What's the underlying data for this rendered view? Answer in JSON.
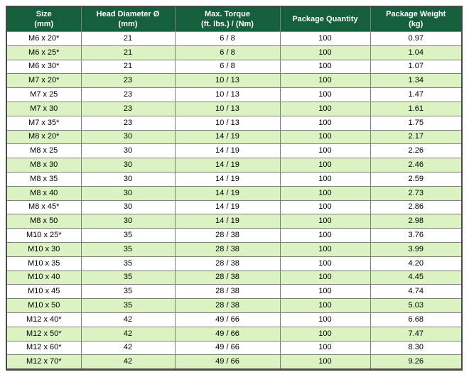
{
  "colors": {
    "header_bg": "#155F3D",
    "header_text": "#FFFFFF",
    "row_bg": "#FFFFFF",
    "row_alt_bg": "#DBF3C3",
    "grid_border": "#7F7F7F",
    "outer_border": "#4A4A4A",
    "text": "#000000"
  },
  "table": {
    "headers": [
      {
        "id": "size",
        "label": "Size\n(mm)"
      },
      {
        "id": "head-diameter",
        "label": "Head Diameter Ø\n(mm)"
      },
      {
        "id": "max-torque",
        "label": "Max. Torque\n(ft. lbs.) / (Nm)"
      },
      {
        "id": "package-quantity",
        "label": "Package Quantity"
      },
      {
        "id": "package-weight",
        "label": "Package Weight\n(kg)"
      }
    ],
    "rows": [
      [
        "M6 x 20*",
        "21",
        "6 / 8",
        "100",
        "0.97"
      ],
      [
        "M6 x 25*",
        "21",
        "6 / 8",
        "100",
        "1.04"
      ],
      [
        "M6 x 30*",
        "21",
        "6 / 8",
        "100",
        "1.07"
      ],
      [
        "M7 x 20*",
        "23",
        "10 / 13",
        "100",
        "1.34"
      ],
      [
        "M7 x 25",
        "23",
        "10 / 13",
        "100",
        "1.47"
      ],
      [
        "M7 x 30",
        "23",
        "10 / 13",
        "100",
        "1.61"
      ],
      [
        "M7 x 35*",
        "23",
        "10 / 13",
        "100",
        "1.75"
      ],
      [
        "M8 x 20*",
        "30",
        "14 / 19",
        "100",
        "2.17"
      ],
      [
        "M8 x 25",
        "30",
        "14 / 19",
        "100",
        "2.26"
      ],
      [
        "M8 x 30",
        "30",
        "14 / 19",
        "100",
        "2.46"
      ],
      [
        "M8 x 35",
        "30",
        "14 / 19",
        "100",
        "2.59"
      ],
      [
        "M8 x 40",
        "30",
        "14 / 19",
        "100",
        "2.73"
      ],
      [
        "M8 x 45*",
        "30",
        "14 / 19",
        "100",
        "2.86"
      ],
      [
        "M8 x 50",
        "30",
        "14 / 19",
        "100",
        "2.98"
      ],
      [
        "M10 x 25*",
        "35",
        "28 / 38",
        "100",
        "3.76"
      ],
      [
        "M10 x 30",
        "35",
        "28 / 38",
        "100",
        "3.99"
      ],
      [
        "M10 x 35",
        "35",
        "28 / 38",
        "100",
        "4.20"
      ],
      [
        "M10 x 40",
        "35",
        "28 / 38",
        "100",
        "4.45"
      ],
      [
        "M10 x 45",
        "35",
        "28 / 38",
        "100",
        "4.74"
      ],
      [
        "M10 x 50",
        "35",
        "28 / 38",
        "100",
        "5.03"
      ],
      [
        "M12 x 40*",
        "42",
        "49 / 66",
        "100",
        "6.68"
      ],
      [
        "M12 x 50*",
        "42",
        "49 / 66",
        "100",
        "7.47"
      ],
      [
        "M12 x 60*",
        "42",
        "49 / 66",
        "100",
        "8.30"
      ],
      [
        "M12 x 70*",
        "42",
        "49 / 66",
        "100",
        "9.26"
      ]
    ]
  }
}
